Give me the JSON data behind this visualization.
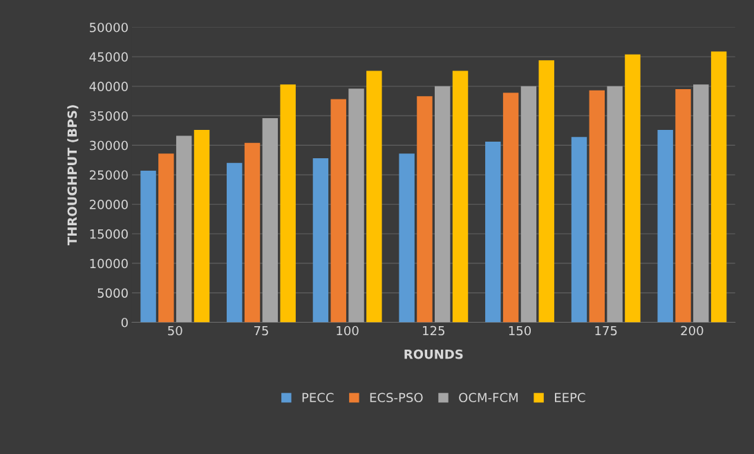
{
  "chart_data": {
    "type": "bar",
    "xlabel": "ROUNDS",
    "ylabel": "THROUGHPUT (BPS)",
    "categories": [
      "50",
      "75",
      "100",
      "125",
      "150",
      "175",
      "200"
    ],
    "series": [
      {
        "name": "PECC",
        "color": "#5b9bd5",
        "values": [
          25700,
          27000,
          27800,
          28600,
          30600,
          31400,
          32600
        ]
      },
      {
        "name": "ECS-PSO",
        "color": "#ed7d31",
        "values": [
          28600,
          30400,
          37800,
          38300,
          38900,
          39300,
          39500
        ]
      },
      {
        "name": "OCM-FCM",
        "color": "#a5a5a5",
        "values": [
          31600,
          34600,
          39600,
          40000,
          40000,
          40000,
          40300
        ]
      },
      {
        "name": "EEPC",
        "color": "#ffc000",
        "values": [
          32600,
          40300,
          42600,
          42600,
          44400,
          45400,
          45900
        ]
      }
    ],
    "ylim": [
      0,
      50000
    ],
    "yticks": [
      0,
      5000,
      10000,
      15000,
      20000,
      25000,
      30000,
      35000,
      40000,
      45000,
      50000
    ],
    "grid": "y",
    "legend": "bottom"
  }
}
